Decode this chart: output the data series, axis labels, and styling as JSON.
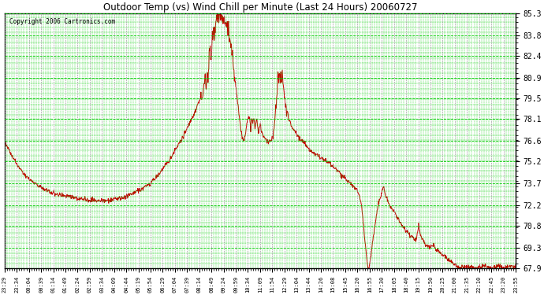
{
  "title": "Outdoor Temp (vs) Wind Chill per Minute (Last 24 Hours) 20060727",
  "copyright": "Copyright 2006 Cartronics.com",
  "background_color": "#ffffff",
  "plot_bg_color": "#ffffff",
  "line_color": "#cc0000",
  "grid_major_color": "#00cc00",
  "grid_minor_color": "#888888",
  "yticks": [
    67.9,
    69.3,
    70.8,
    72.2,
    73.7,
    75.2,
    76.6,
    78.1,
    79.5,
    80.9,
    82.4,
    83.8,
    85.3
  ],
  "ymin": 67.9,
  "ymax": 85.3,
  "xtick_labels": [
    "23:29",
    "23:34",
    "00:04",
    "00:39",
    "01:14",
    "01:49",
    "02:24",
    "02:59",
    "03:34",
    "04:09",
    "04:44",
    "05:19",
    "05:54",
    "06:29",
    "07:04",
    "07:39",
    "08:14",
    "08:49",
    "09:24",
    "09:59",
    "10:34",
    "11:09",
    "11:54",
    "12:29",
    "13:04",
    "13:44",
    "14:26",
    "15:08",
    "15:45",
    "16:20",
    "16:55",
    "17:30",
    "18:05",
    "18:40",
    "19:15",
    "19:50",
    "20:25",
    "21:00",
    "21:35",
    "22:10",
    "22:45",
    "23:20",
    "23:55"
  ],
  "n_points": 1440,
  "segments": [
    {
      "t": 0,
      "v": 76.6
    },
    {
      "t": 20,
      "v": 75.6
    },
    {
      "t": 40,
      "v": 74.8
    },
    {
      "t": 60,
      "v": 74.2
    },
    {
      "t": 80,
      "v": 73.8
    },
    {
      "t": 100,
      "v": 73.5
    },
    {
      "t": 120,
      "v": 73.2
    },
    {
      "t": 140,
      "v": 73.0
    },
    {
      "t": 160,
      "v": 72.9
    },
    {
      "t": 180,
      "v": 72.8
    },
    {
      "t": 200,
      "v": 72.7
    },
    {
      "t": 215,
      "v": 72.65
    },
    {
      "t": 230,
      "v": 72.6
    },
    {
      "t": 250,
      "v": 72.55
    },
    {
      "t": 270,
      "v": 72.5
    },
    {
      "t": 290,
      "v": 72.55
    },
    {
      "t": 310,
      "v": 72.6
    },
    {
      "t": 330,
      "v": 72.7
    },
    {
      "t": 350,
      "v": 72.9
    },
    {
      "t": 370,
      "v": 73.1
    },
    {
      "t": 390,
      "v": 73.4
    },
    {
      "t": 410,
      "v": 73.7
    },
    {
      "t": 440,
      "v": 74.5
    },
    {
      "t": 470,
      "v": 75.5
    },
    {
      "t": 500,
      "v": 76.8
    },
    {
      "t": 530,
      "v": 78.2
    },
    {
      "t": 545,
      "v": 79.2
    },
    {
      "t": 555,
      "v": 79.5
    },
    {
      "t": 560,
      "v": 80.2
    },
    {
      "t": 565,
      "v": 81.0
    },
    {
      "t": 568,
      "v": 80.0
    },
    {
      "t": 570,
      "v": 81.5
    },
    {
      "t": 573,
      "v": 80.8
    },
    {
      "t": 576,
      "v": 82.4
    },
    {
      "t": 579,
      "v": 83.0
    },
    {
      "t": 582,
      "v": 82.2
    },
    {
      "t": 585,
      "v": 83.6
    },
    {
      "t": 588,
      "v": 84.2
    },
    {
      "t": 591,
      "v": 83.5
    },
    {
      "t": 594,
      "v": 84.8
    },
    {
      "t": 597,
      "v": 85.0
    },
    {
      "t": 600,
      "v": 85.2
    },
    {
      "t": 603,
      "v": 84.8
    },
    {
      "t": 606,
      "v": 85.3
    },
    {
      "t": 609,
      "v": 85.2
    },
    {
      "t": 612,
      "v": 85.1
    },
    {
      "t": 615,
      "v": 84.9
    },
    {
      "t": 620,
      "v": 84.7
    },
    {
      "t": 625,
      "v": 84.5
    },
    {
      "t": 630,
      "v": 84.3
    },
    {
      "t": 635,
      "v": 83.5
    },
    {
      "t": 640,
      "v": 82.8
    },
    {
      "t": 645,
      "v": 81.5
    },
    {
      "t": 650,
      "v": 80.5
    },
    {
      "t": 655,
      "v": 79.5
    },
    {
      "t": 660,
      "v": 78.5
    },
    {
      "t": 665,
      "v": 77.5
    },
    {
      "t": 670,
      "v": 76.8
    },
    {
      "t": 675,
      "v": 76.6
    },
    {
      "t": 678,
      "v": 77.0
    },
    {
      "t": 681,
      "v": 77.5
    },
    {
      "t": 684,
      "v": 78.1
    },
    {
      "t": 690,
      "v": 78.2
    },
    {
      "t": 693,
      "v": 77.4
    },
    {
      "t": 696,
      "v": 78.3
    },
    {
      "t": 699,
      "v": 77.8
    },
    {
      "t": 702,
      "v": 78.2
    },
    {
      "t": 705,
      "v": 77.5
    },
    {
      "t": 710,
      "v": 78.1
    },
    {
      "t": 715,
      "v": 77.2
    },
    {
      "t": 720,
      "v": 77.8
    },
    {
      "t": 725,
      "v": 77.1
    },
    {
      "t": 730,
      "v": 76.9
    },
    {
      "t": 735,
      "v": 76.7
    },
    {
      "t": 745,
      "v": 76.5
    },
    {
      "t": 755,
      "v": 76.8
    },
    {
      "t": 760,
      "v": 77.5
    },
    {
      "t": 762,
      "v": 78.2
    },
    {
      "t": 764,
      "v": 79.0
    },
    {
      "t": 766,
      "v": 79.5
    },
    {
      "t": 768,
      "v": 80.2
    },
    {
      "t": 770,
      "v": 80.9
    },
    {
      "t": 772,
      "v": 80.5
    },
    {
      "t": 774,
      "v": 81.2
    },
    {
      "t": 776,
      "v": 80.8
    },
    {
      "t": 778,
      "v": 81.3
    },
    {
      "t": 780,
      "v": 80.6
    },
    {
      "t": 782,
      "v": 81.0
    },
    {
      "t": 784,
      "v": 80.5
    },
    {
      "t": 788,
      "v": 79.8
    },
    {
      "t": 792,
      "v": 79.0
    },
    {
      "t": 796,
      "v": 78.4
    },
    {
      "t": 800,
      "v": 78.1
    },
    {
      "t": 805,
      "v": 77.8
    },
    {
      "t": 810,
      "v": 77.5
    },
    {
      "t": 820,
      "v": 77.2
    },
    {
      "t": 830,
      "v": 76.8
    },
    {
      "t": 840,
      "v": 76.5
    },
    {
      "t": 855,
      "v": 76.1
    },
    {
      "t": 870,
      "v": 75.8
    },
    {
      "t": 885,
      "v": 75.6
    },
    {
      "t": 900,
      "v": 75.3
    },
    {
      "t": 915,
      "v": 75.1
    },
    {
      "t": 930,
      "v": 74.7
    },
    {
      "t": 945,
      "v": 74.4
    },
    {
      "t": 960,
      "v": 74.0
    },
    {
      "t": 975,
      "v": 73.7
    },
    {
      "t": 990,
      "v": 73.3
    },
    {
      "t": 1000,
      "v": 72.8
    },
    {
      "t": 1005,
      "v": 72.2
    },
    {
      "t": 1008,
      "v": 71.5
    },
    {
      "t": 1011,
      "v": 70.8
    },
    {
      "t": 1014,
      "v": 70.0
    },
    {
      "t": 1017,
      "v": 69.3
    },
    {
      "t": 1020,
      "v": 68.5
    },
    {
      "t": 1023,
      "v": 67.9
    },
    {
      "t": 1026,
      "v": 68.0
    },
    {
      "t": 1029,
      "v": 68.3
    },
    {
      "t": 1032,
      "v": 68.8
    },
    {
      "t": 1035,
      "v": 69.5
    },
    {
      "t": 1040,
      "v": 70.3
    },
    {
      "t": 1045,
      "v": 71.2
    },
    {
      "t": 1050,
      "v": 72.0
    },
    {
      "t": 1055,
      "v": 72.5
    },
    {
      "t": 1060,
      "v": 72.8
    },
    {
      "t": 1063,
      "v": 73.2
    },
    {
      "t": 1066,
      "v": 73.5
    },
    {
      "t": 1069,
      "v": 73.3
    },
    {
      "t": 1072,
      "v": 73.0
    },
    {
      "t": 1075,
      "v": 72.7
    },
    {
      "t": 1080,
      "v": 72.4
    },
    {
      "t": 1090,
      "v": 72.0
    },
    {
      "t": 1100,
      "v": 71.6
    },
    {
      "t": 1110,
      "v": 71.2
    },
    {
      "t": 1120,
      "v": 70.8
    },
    {
      "t": 1130,
      "v": 70.5
    },
    {
      "t": 1140,
      "v": 70.2
    },
    {
      "t": 1150,
      "v": 70.0
    },
    {
      "t": 1155,
      "v": 69.8
    },
    {
      "t": 1160,
      "v": 70.0
    },
    {
      "t": 1163,
      "v": 70.5
    },
    {
      "t": 1166,
      "v": 70.8
    },
    {
      "t": 1169,
      "v": 70.5
    },
    {
      "t": 1172,
      "v": 70.2
    },
    {
      "t": 1175,
      "v": 70.0
    },
    {
      "t": 1180,
      "v": 69.8
    },
    {
      "t": 1185,
      "v": 69.5
    },
    {
      "t": 1190,
      "v": 69.4
    },
    {
      "t": 1195,
      "v": 69.3
    },
    {
      "t": 1200,
      "v": 69.4
    },
    {
      "t": 1205,
      "v": 69.5
    },
    {
      "t": 1210,
      "v": 69.4
    },
    {
      "t": 1215,
      "v": 69.3
    },
    {
      "t": 1220,
      "v": 69.1
    },
    {
      "t": 1230,
      "v": 68.9
    },
    {
      "t": 1240,
      "v": 68.7
    },
    {
      "t": 1250,
      "v": 68.5
    },
    {
      "t": 1260,
      "v": 68.3
    },
    {
      "t": 1270,
      "v": 68.1
    },
    {
      "t": 1280,
      "v": 67.9
    },
    {
      "t": 1290,
      "v": 68.0
    },
    {
      "t": 1300,
      "v": 68.1
    },
    {
      "t": 1310,
      "v": 68.0
    },
    {
      "t": 1320,
      "v": 67.95
    },
    {
      "t": 1330,
      "v": 67.9
    },
    {
      "t": 1340,
      "v": 67.95
    },
    {
      "t": 1350,
      "v": 68.1
    },
    {
      "t": 1360,
      "v": 68.0
    },
    {
      "t": 1370,
      "v": 67.9
    },
    {
      "t": 1380,
      "v": 68.0
    },
    {
      "t": 1390,
      "v": 68.1
    },
    {
      "t": 1400,
      "v": 68.0
    },
    {
      "t": 1410,
      "v": 67.9
    },
    {
      "t": 1420,
      "v": 68.0
    },
    {
      "t": 1430,
      "v": 68.05
    },
    {
      "t": 1439,
      "v": 68.1
    }
  ]
}
